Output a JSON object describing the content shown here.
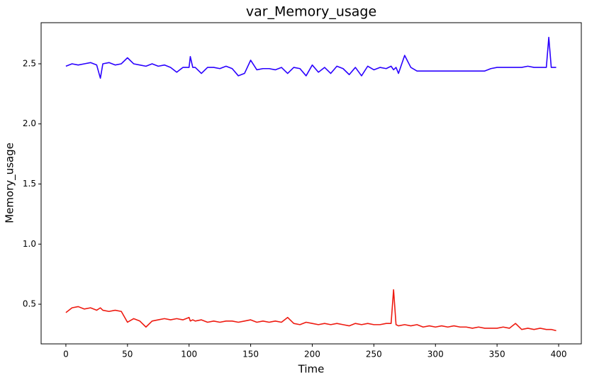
{
  "chart_data": {
    "type": "line",
    "title": "var_Memory_usage",
    "x_label": "Time",
    "y_label": "Memory_usage",
    "x": [
      0,
      5,
      10,
      15,
      20,
      25,
      28,
      30,
      35,
      40,
      45,
      50,
      55,
      60,
      65,
      70,
      75,
      80,
      85,
      90,
      95,
      100,
      101,
      103,
      105,
      110,
      115,
      120,
      125,
      130,
      135,
      140,
      145,
      150,
      155,
      160,
      165,
      170,
      175,
      180,
      185,
      190,
      195,
      200,
      205,
      210,
      215,
      220,
      225,
      230,
      235,
      240,
      245,
      250,
      255,
      260,
      264,
      266,
      268,
      270,
      275,
      280,
      285,
      290,
      295,
      300,
      305,
      310,
      315,
      320,
      325,
      330,
      335,
      340,
      345,
      350,
      355,
      360,
      365,
      370,
      375,
      380,
      385,
      390,
      392,
      394,
      398
    ],
    "series": [
      {
        "color": "#2a00ff",
        "values": [
          2.48,
          2.5,
          2.49,
          2.5,
          2.51,
          2.49,
          2.38,
          2.5,
          2.51,
          2.49,
          2.5,
          2.55,
          2.5,
          2.49,
          2.48,
          2.5,
          2.48,
          2.49,
          2.47,
          2.43,
          2.47,
          2.47,
          2.56,
          2.47,
          2.47,
          2.42,
          2.47,
          2.47,
          2.46,
          2.48,
          2.46,
          2.4,
          2.42,
          2.53,
          2.45,
          2.46,
          2.46,
          2.45,
          2.47,
          2.42,
          2.47,
          2.46,
          2.4,
          2.49,
          2.43,
          2.47,
          2.42,
          2.48,
          2.46,
          2.41,
          2.47,
          2.4,
          2.48,
          2.45,
          2.47,
          2.46,
          2.48,
          2.45,
          2.47,
          2.42,
          2.57,
          2.47,
          2.44,
          2.44,
          2.44,
          2.44,
          2.44,
          2.44,
          2.44,
          2.44,
          2.44,
          2.44,
          2.44,
          2.44,
          2.46,
          2.47,
          2.47,
          2.47,
          2.47,
          2.47,
          2.48,
          2.47,
          2.47,
          2.47,
          2.72,
          2.47,
          2.47
        ]
      },
      {
        "color": "#ee1a10",
        "values": [
          0.43,
          0.47,
          0.48,
          0.46,
          0.47,
          0.45,
          0.47,
          0.45,
          0.44,
          0.45,
          0.44,
          0.35,
          0.38,
          0.36,
          0.31,
          0.36,
          0.37,
          0.38,
          0.37,
          0.38,
          0.37,
          0.39,
          0.36,
          0.37,
          0.36,
          0.37,
          0.35,
          0.36,
          0.35,
          0.36,
          0.36,
          0.35,
          0.36,
          0.37,
          0.35,
          0.36,
          0.35,
          0.36,
          0.35,
          0.39,
          0.34,
          0.33,
          0.35,
          0.34,
          0.33,
          0.34,
          0.33,
          0.34,
          0.33,
          0.32,
          0.34,
          0.33,
          0.34,
          0.33,
          0.33,
          0.34,
          0.34,
          0.62,
          0.33,
          0.32,
          0.33,
          0.32,
          0.33,
          0.31,
          0.32,
          0.31,
          0.32,
          0.31,
          0.32,
          0.31,
          0.31,
          0.3,
          0.31,
          0.3,
          0.3,
          0.3,
          0.31,
          0.3,
          0.34,
          0.29,
          0.3,
          0.29,
          0.3,
          0.29,
          0.29,
          0.29,
          0.28
        ]
      }
    ],
    "xlim": [
      -20.1,
      418.4
    ],
    "ylim": [
      0.17,
      2.842
    ],
    "xticks": [
      0,
      50,
      100,
      150,
      200,
      250,
      300,
      350,
      400
    ],
    "yticks": [
      0.5,
      {
        "value": 1.0,
        "label": "1.0"
      },
      1.5,
      {
        "value": 2.0,
        "label": "2.0"
      },
      2.5
    ]
  }
}
